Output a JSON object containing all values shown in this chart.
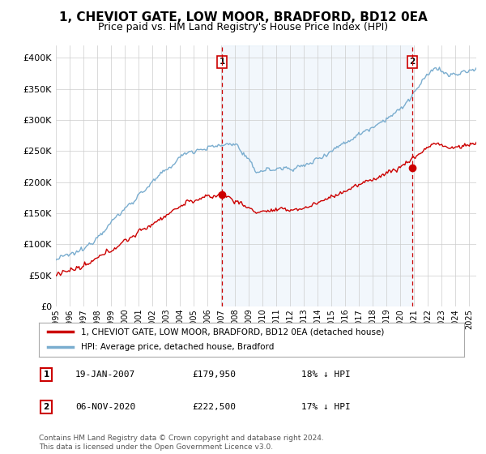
{
  "title": "1, CHEVIOT GATE, LOW MOOR, BRADFORD, BD12 0EA",
  "subtitle": "Price paid vs. HM Land Registry's House Price Index (HPI)",
  "ylim": [
    0,
    420000
  ],
  "yticks": [
    0,
    50000,
    100000,
    150000,
    200000,
    250000,
    300000,
    350000,
    400000
  ],
  "sale1_date": "19-JAN-2007",
  "sale1_price": 179950,
  "sale1_year": 2007.05,
  "sale2_date": "06-NOV-2020",
  "sale2_price": 222500,
  "sale2_year": 2020.85,
  "legend_property": "1, CHEVIOT GATE, LOW MOOR, BRADFORD, BD12 0EA (detached house)",
  "legend_hpi": "HPI: Average price, detached house, Bradford",
  "property_line_color": "#cc0000",
  "hpi_line_color": "#7aadcf",
  "fill_color": "#ddeeff",
  "sale_marker_color": "#cc0000",
  "vline_color": "#cc0000",
  "footer": "Contains HM Land Registry data © Crown copyright and database right 2024.\nThis data is licensed under the Open Government Licence v3.0.",
  "background_color": "#ffffff",
  "grid_color": "#cccccc",
  "title_fontsize": 11,
  "subtitle_fontsize": 9,
  "tick_fontsize": 8,
  "xlim_start": 1995,
  "xlim_end": 2025.5
}
